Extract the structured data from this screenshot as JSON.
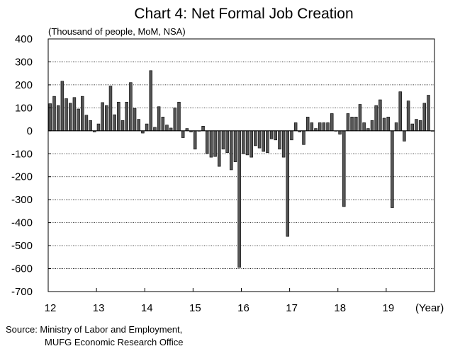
{
  "chart_data": {
    "type": "bar",
    "title": "Chart 4: Net Formal Job Creation",
    "subtitle": "(Thousand of people, MoM, NSA)",
    "xlabel": "(Year)",
    "ylabel": "",
    "ylim": [
      -700,
      400
    ],
    "yticks": [
      400,
      300,
      200,
      100,
      0,
      -100,
      -200,
      -300,
      -400,
      -500,
      -600,
      -700
    ],
    "xtick_labels": [
      "12",
      "13",
      "14",
      "15",
      "16",
      "17",
      "18",
      "19"
    ],
    "grid": true,
    "bar_color": "#555555",
    "categories": [
      "12-01",
      "12-02",
      "12-03",
      "12-04",
      "12-05",
      "12-06",
      "12-07",
      "12-08",
      "12-09",
      "12-10",
      "12-11",
      "12-12",
      "13-01",
      "13-02",
      "13-03",
      "13-04",
      "13-05",
      "13-06",
      "13-07",
      "13-08",
      "13-09",
      "13-10",
      "13-11",
      "13-12",
      "14-01",
      "14-02",
      "14-03",
      "14-04",
      "14-05",
      "14-06",
      "14-07",
      "14-08",
      "14-09",
      "14-10",
      "14-11",
      "14-12",
      "15-01",
      "15-02",
      "15-03",
      "15-04",
      "15-05",
      "15-06",
      "15-07",
      "15-08",
      "15-09",
      "15-10",
      "15-11",
      "15-12",
      "16-01",
      "16-02",
      "16-03",
      "16-04",
      "16-05",
      "16-06",
      "16-07",
      "16-08",
      "16-09",
      "16-10",
      "16-11",
      "16-12",
      "17-01",
      "17-02",
      "17-03",
      "17-04",
      "17-05",
      "17-06",
      "17-07",
      "17-08",
      "17-09",
      "17-10",
      "17-11",
      "17-12",
      "18-01",
      "18-02",
      "18-03",
      "18-04",
      "18-05",
      "18-06",
      "18-07",
      "18-08",
      "18-09",
      "18-10",
      "18-11",
      "18-12",
      "19-01",
      "19-02",
      "19-03",
      "19-04",
      "19-05",
      "19-06",
      "19-07",
      "19-08",
      "19-09",
      "19-10",
      "19-11",
      "19-12"
    ],
    "values": [
      118,
      150,
      110,
      216,
      140,
      120,
      145,
      95,
      150,
      68,
      45,
      -5,
      30,
      123,
      110,
      195,
      70,
      125,
      45,
      125,
      210,
      98,
      50,
      -10,
      30,
      262,
      15,
      105,
      60,
      25,
      12,
      100,
      125,
      -30,
      10,
      -5,
      -80,
      0,
      20,
      -100,
      -115,
      -112,
      -155,
      -80,
      -95,
      -170,
      -135,
      -595,
      -100,
      -105,
      -115,
      -65,
      -75,
      -90,
      -95,
      -35,
      -40,
      -80,
      -115,
      -460,
      -40,
      35,
      -5,
      -60,
      60,
      35,
      10,
      35,
      35,
      35,
      75,
      0,
      -15,
      -330,
      75,
      60,
      60,
      115,
      35,
      10,
      45,
      110,
      135,
      55,
      60,
      -335,
      35,
      170,
      -45,
      130,
      30,
      50,
      45,
      120,
      155,
      0
    ],
    "source_lines": [
      "Source: Ministry of Labor and Employment,",
      "MUFG Economic Research Office"
    ]
  }
}
